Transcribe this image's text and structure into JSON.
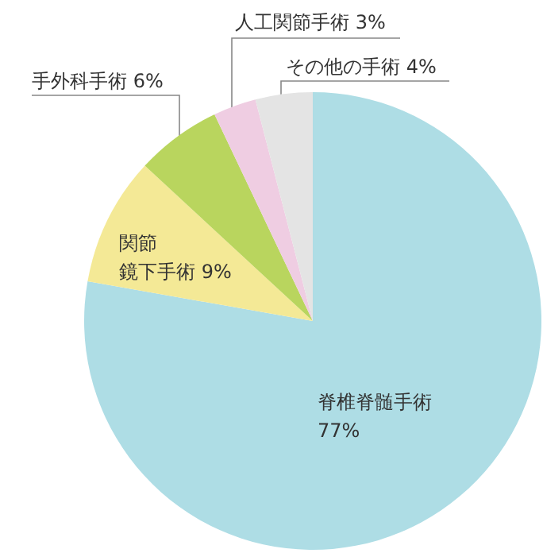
{
  "chart_data": {
    "type": "pie",
    "categories": [
      "脊椎脊髄手術",
      "関節鏡下手術",
      "手外科手術",
      "人工関節手術",
      "その他の手術"
    ],
    "values": [
      77,
      9,
      6,
      3,
      4
    ],
    "colors": [
      "#aedde5",
      "#f4e996",
      "#b9d55e",
      "#efcde2",
      "#e4e4e4"
    ],
    "value_labels": [
      "77%",
      "9%",
      "6%",
      "3%",
      "4%"
    ],
    "legend": false
  }
}
